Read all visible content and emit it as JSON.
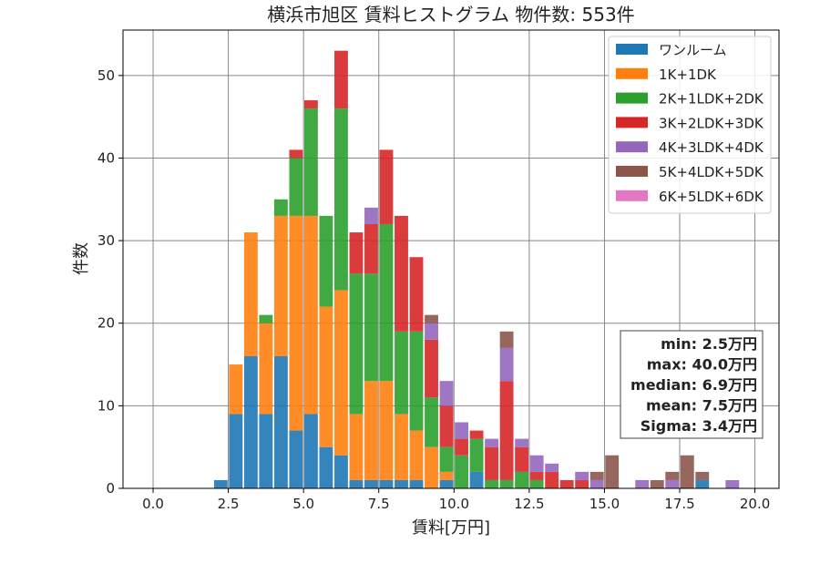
{
  "chart_data": {
    "type": "bar",
    "stacked": true,
    "title": "横浜市旭区 賃料ヒストグラム 物件数: 553件",
    "xlabel": "賃料[万円]",
    "ylabel": "件数",
    "xlim": [
      -1.0,
      20.8
    ],
    "ylim": [
      0,
      55.5
    ],
    "xticks": [
      0.0,
      2.5,
      5.0,
      7.5,
      10.0,
      12.5,
      15.0,
      17.5,
      20.0
    ],
    "xtick_labels": [
      "0.0",
      "2.5",
      "5.0",
      "7.5",
      "10.0",
      "12.5",
      "15.0",
      "17.5",
      "20.0"
    ],
    "yticks": [
      0,
      10,
      20,
      30,
      40,
      50
    ],
    "ytick_labels": [
      "0",
      "10",
      "20",
      "30",
      "40",
      "50"
    ],
    "grid": true,
    "legend_position": "top-right",
    "bin_width": 0.5,
    "x": [
      2.25,
      2.75,
      3.25,
      3.75,
      4.25,
      4.75,
      5.25,
      5.75,
      6.25,
      6.75,
      7.25,
      7.75,
      8.25,
      8.75,
      9.25,
      9.75,
      10.25,
      10.75,
      11.25,
      11.75,
      12.25,
      12.75,
      13.25,
      13.75,
      14.25,
      14.75,
      15.25,
      15.75,
      16.25,
      16.75,
      17.25,
      17.75,
      18.25,
      18.75,
      19.25,
      19.75
    ],
    "series": [
      {
        "name": "ワンルーム",
        "color": "#1f77b4",
        "values": [
          1,
          9,
          16,
          9,
          16,
          7,
          9,
          5,
          4,
          1,
          1,
          1,
          1,
          1,
          0,
          1,
          0,
          2,
          0,
          0,
          0,
          0,
          0,
          0,
          0,
          0,
          0,
          0,
          0,
          0,
          0,
          0,
          1,
          0,
          0,
          0
        ]
      },
      {
        "name": "1K+1DK",
        "color": "#ff7f0e",
        "values": [
          0,
          6,
          15,
          11,
          17,
          26,
          24,
          17,
          20,
          8,
          12,
          12,
          8,
          6,
          5,
          1,
          0,
          0,
          0,
          0,
          0,
          0,
          0,
          0,
          0,
          0,
          0,
          0,
          0,
          0,
          0,
          0,
          0,
          0,
          0,
          0
        ]
      },
      {
        "name": "2K+1LDK+2DK",
        "color": "#2ca02c",
        "values": [
          0,
          0,
          0,
          1,
          2,
          7,
          13,
          11,
          22,
          17,
          13,
          19,
          10,
          12,
          6,
          3,
          4,
          4,
          1,
          1,
          2,
          1,
          0,
          0,
          0,
          0,
          0,
          0,
          0,
          0,
          0,
          0,
          0,
          0,
          0,
          0
        ]
      },
      {
        "name": "3K+2LDK+3DK",
        "color": "#d62728",
        "values": [
          0,
          0,
          0,
          0,
          0,
          1,
          1,
          0,
          7,
          5,
          6,
          9,
          14,
          9,
          7,
          5,
          2,
          1,
          4,
          12,
          3,
          1,
          2,
          1,
          1,
          0,
          0,
          0,
          0,
          0,
          0,
          0,
          0,
          0,
          0,
          0
        ]
      },
      {
        "name": "4K+3LDK+4DK",
        "color": "#9467bd",
        "values": [
          0,
          0,
          0,
          0,
          0,
          0,
          0,
          0,
          0,
          0,
          2,
          0,
          0,
          0,
          2,
          3,
          2,
          0,
          1,
          4,
          1,
          2,
          1,
          0,
          1,
          1,
          0,
          0,
          1,
          0,
          1,
          0,
          0,
          0,
          1,
          0
        ]
      },
      {
        "name": "5K+4LDK+5DK",
        "color": "#8c564b",
        "values": [
          0,
          0,
          0,
          0,
          0,
          0,
          0,
          0,
          0,
          0,
          0,
          0,
          0,
          0,
          1,
          0,
          0,
          0,
          0,
          2,
          0,
          0,
          0,
          0,
          0,
          1,
          4,
          0,
          0,
          1,
          1,
          4,
          1,
          0,
          0,
          0
        ]
      },
      {
        "name": "6K+5LDK+6DK",
        "color": "#e377c2",
        "values": [
          0,
          0,
          0,
          0,
          0,
          0,
          0,
          0,
          0,
          0,
          0,
          0,
          0,
          0,
          0,
          0,
          0,
          0,
          0,
          0,
          0,
          0,
          0,
          0,
          0,
          0,
          0,
          0,
          0,
          0,
          0,
          0,
          0,
          0,
          0,
          0
        ]
      }
    ],
    "stats_box": {
      "lines": [
        "min: 2.5万円",
        "max: 40.0万円",
        "median: 6.9万円",
        "mean: 7.5万円",
        "Sigma: 3.4万円"
      ]
    }
  }
}
